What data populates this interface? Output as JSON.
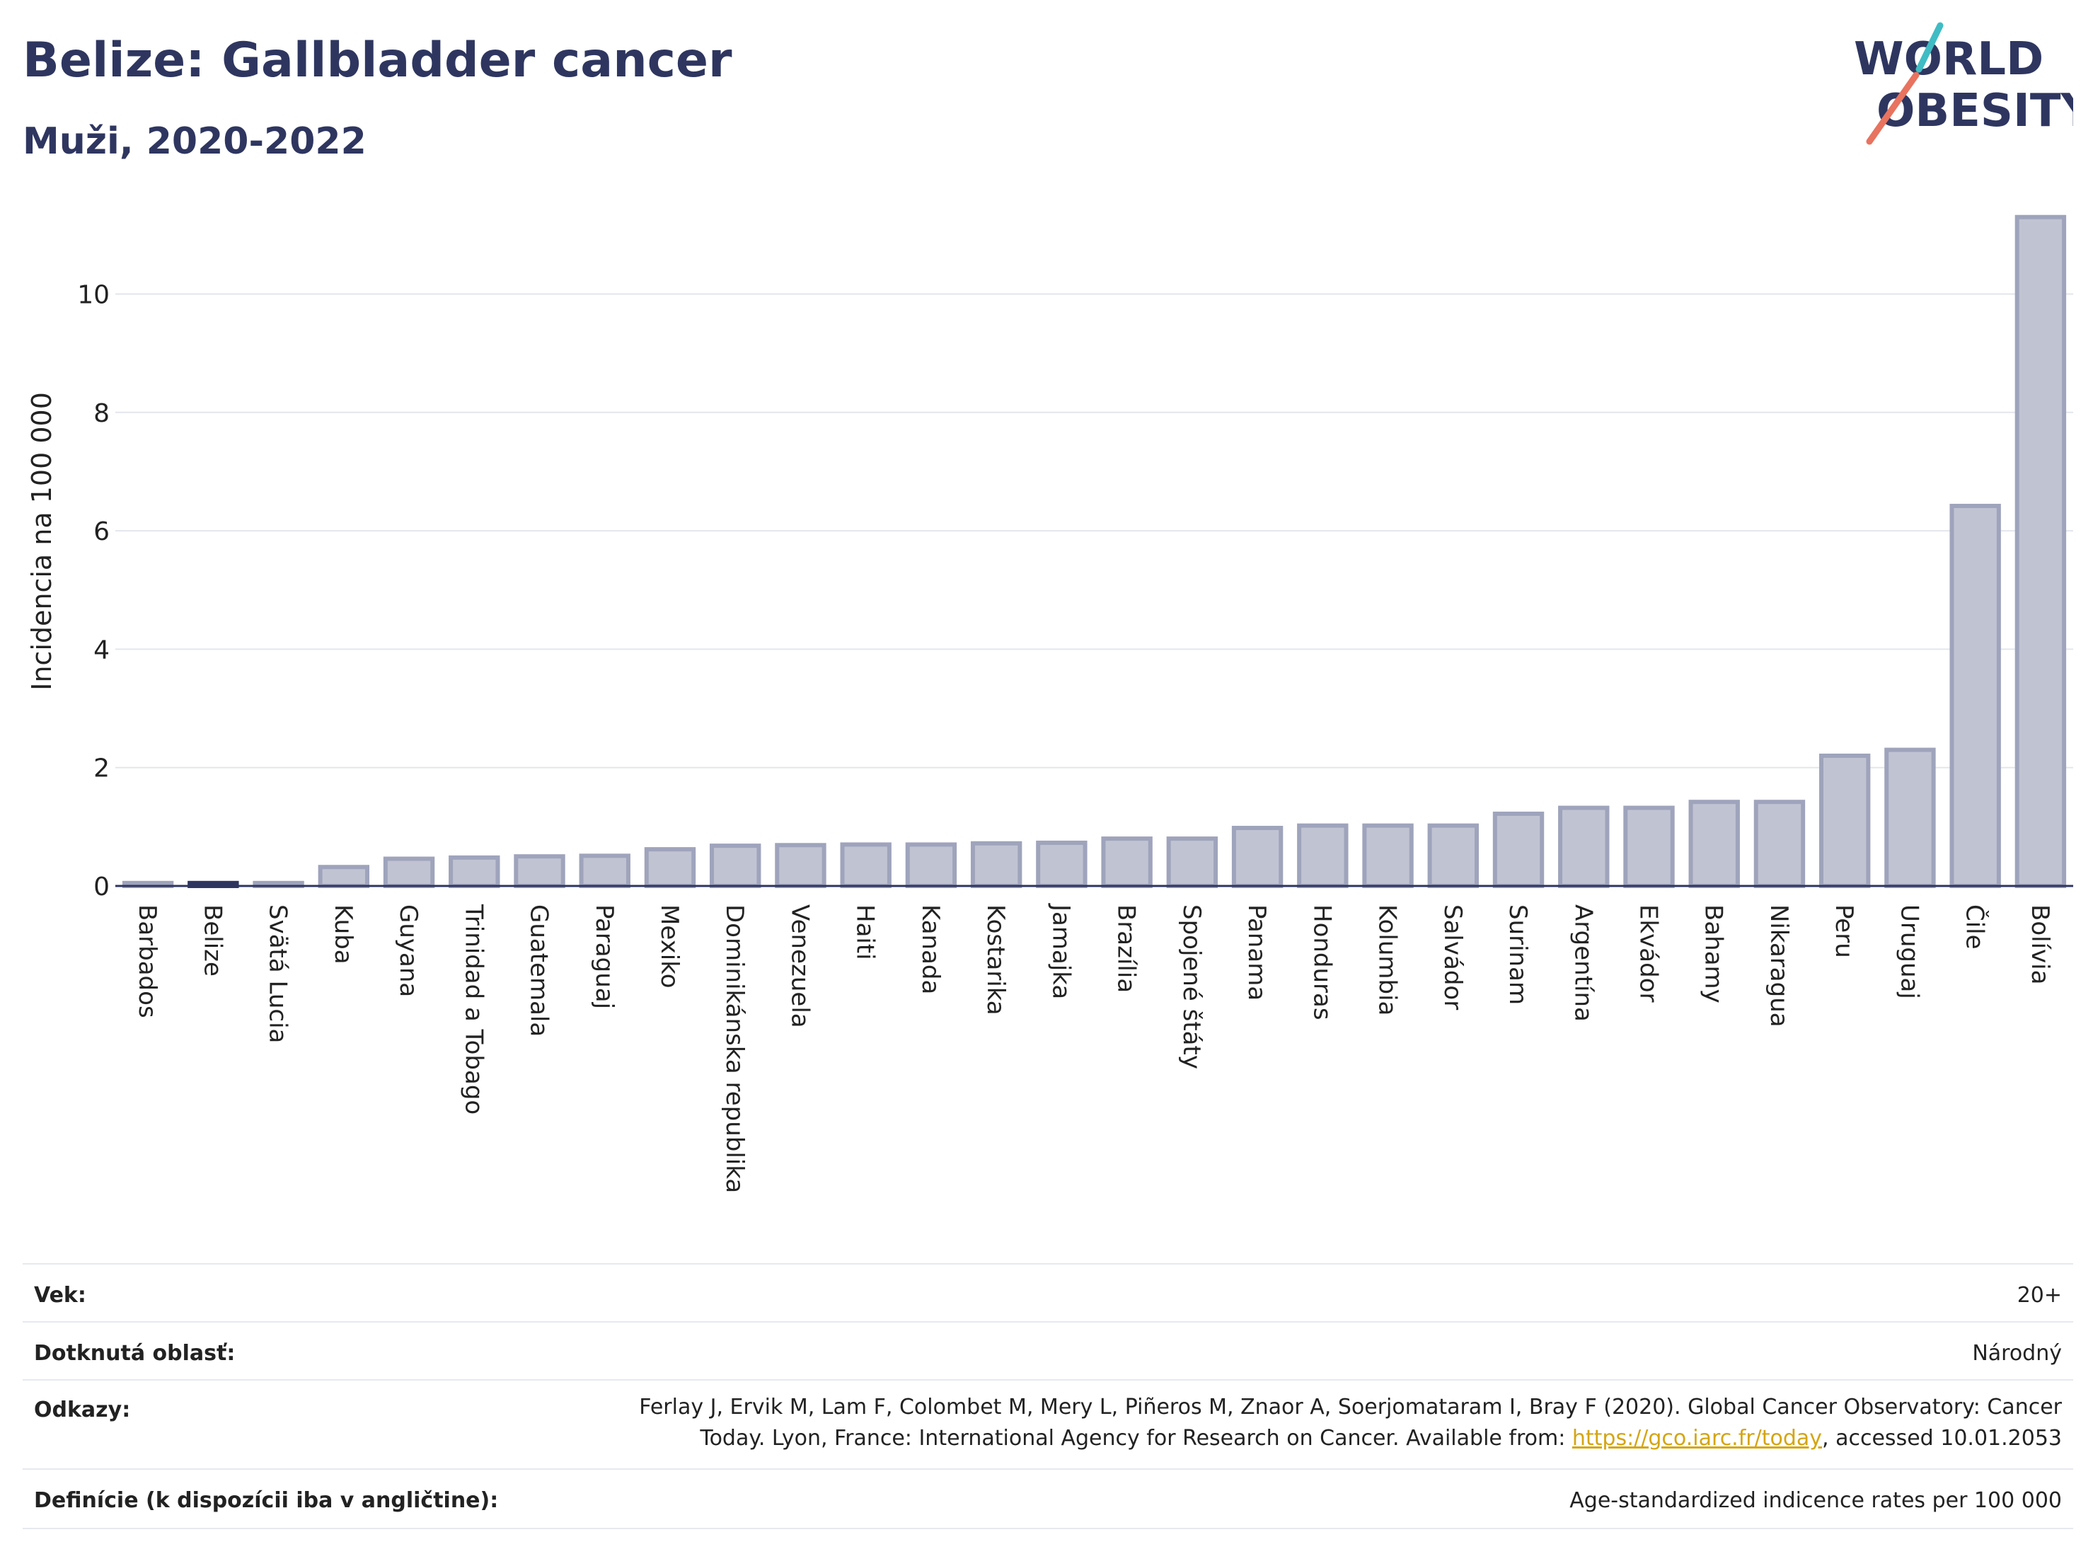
{
  "header": {
    "title": "Belize: Gallbladder cancer",
    "subtitle": "Muži, 2020-2022"
  },
  "logo": {
    "line1": "WORLD",
    "line2": "OBESITY",
    "accent_teal": "#3fbcc4",
    "accent_coral": "#e8735f",
    "color": "#2e3660"
  },
  "chart_data": {
    "type": "bar",
    "ylabel": "Incidencia na 100 000",
    "xlabel": "",
    "ylim": [
      0,
      11.5
    ],
    "yticks": [
      0,
      2,
      4,
      6,
      8,
      10
    ],
    "grid": true,
    "highlight": "Belize",
    "colors": {
      "bar": "#c0c3d2",
      "bar_edge": "#9fa4bc",
      "highlight": "#2e3660"
    },
    "categories": [
      "Barbados",
      "Belize",
      "Svätá Lucia",
      "Kuba",
      "Guyana",
      "Trinidad a Tobago",
      "Guatemala",
      "Paraguaj",
      "Mexiko",
      "Dominikánska republika",
      "Venezuela",
      "Haiti",
      "Kanada",
      "Kostarika",
      "Jamajka",
      "Brazília",
      "Spojené štáty",
      "Panama",
      "Honduras",
      "Kolumbia",
      "Salvádor",
      "Surinam",
      "Argentína",
      "Ekvádor",
      "Bahamy",
      "Nikaragua",
      "Peru",
      "Uruguaj",
      "Čile",
      "Bolívia"
    ],
    "values": [
      0.05,
      0.05,
      0.05,
      0.32,
      0.46,
      0.48,
      0.5,
      0.51,
      0.62,
      0.68,
      0.69,
      0.7,
      0.7,
      0.72,
      0.73,
      0.8,
      0.8,
      0.98,
      1.02,
      1.02,
      1.02,
      1.22,
      1.32,
      1.32,
      1.42,
      1.42,
      2.2,
      2.3,
      6.42,
      11.3
    ]
  },
  "info": {
    "age_label": "Vek:",
    "age_value": "20+",
    "area_label": "Dotknutá oblasť:",
    "area_value": "Národný",
    "ref_label": "Odkazy:",
    "ref_text_1": "Ferlay J, Ervik M, Lam F, Colombet M, Mery L, Piñeros M, Znaor A, Soerjomataram I, Bray F (2020). Global Cancer Observatory: Cancer",
    "ref_text_2": "Today. Lyon, France: International Agency for Research on Cancer. Available from: ",
    "ref_link": "https://gco.iarc.fr/today",
    "ref_text_3": ", accessed 10.01.2053",
    "def_label": "Definície (k dispozícii iba v angličtine):",
    "def_value": "Age-standardized indicence rates per 100 000"
  }
}
